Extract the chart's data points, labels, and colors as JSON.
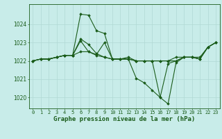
{
  "title": "Graphe pression niveau de la mer (hPa)",
  "background_color": "#c8ece9",
  "grid_color": "#b0d8d4",
  "line_color": "#1a5c1a",
  "x_labels": [
    "0",
    "1",
    "2",
    "3",
    "4",
    "5",
    "6",
    "7",
    "8",
    "9",
    "10",
    "11",
    "12",
    "13",
    "14",
    "15",
    "16",
    "17",
    "18",
    "19",
    "20",
    "21",
    "22",
    "23"
  ],
  "ylim": [
    1019.4,
    1025.1
  ],
  "yticks": [
    1020,
    1021,
    1022,
    1023,
    1024
  ],
  "series": [
    [
      1022.0,
      1022.1,
      1022.1,
      1022.2,
      1022.3,
      1022.3,
      1024.55,
      1024.5,
      1023.65,
      1023.5,
      1022.1,
      1022.1,
      1022.1,
      1022.0,
      1022.0,
      1022.0,
      1020.0,
      1019.65,
      1021.9,
      1022.2,
      1022.2,
      1022.1,
      1022.75,
      1023.0
    ],
    [
      1022.0,
      1022.1,
      1022.1,
      1022.2,
      1022.3,
      1022.3,
      1023.1,
      1022.5,
      1022.35,
      1023.0,
      1022.1,
      1022.1,
      1022.1,
      1021.05,
      1020.8,
      1020.4,
      1020.0,
      1021.85,
      1022.0,
      1022.2,
      1022.2,
      1022.1,
      1022.75,
      1023.0
    ],
    [
      1022.0,
      1022.1,
      1022.1,
      1022.2,
      1022.3,
      1022.3,
      1022.5,
      1022.5,
      1022.3,
      1022.2,
      1022.1,
      1022.1,
      1022.1,
      1022.0,
      1022.0,
      1022.0,
      1022.0,
      1022.0,
      1022.0,
      1022.2,
      1022.2,
      1022.1,
      1022.75,
      1023.0
    ],
    [
      1022.0,
      1022.1,
      1022.1,
      1022.2,
      1022.3,
      1022.3,
      1023.2,
      1022.9,
      1022.4,
      1022.2,
      1022.1,
      1022.1,
      1022.2,
      1022.0,
      1022.0,
      1022.0,
      1022.0,
      1022.0,
      1022.2,
      1022.2,
      1022.2,
      1022.2,
      1022.75,
      1023.0
    ]
  ],
  "marker": "D",
  "markersize": 1.8,
  "linewidth": 0.8,
  "title_fontsize": 6.5,
  "tick_fontsize": 5.0,
  "ylabel_fontsize": 5.5
}
